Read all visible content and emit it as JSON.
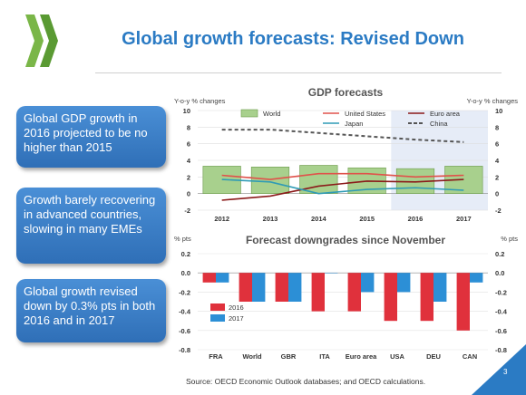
{
  "slide": {
    "title": "Global growth forecasts: Revised Down",
    "source": "Source: OECD Economic Outlook databases; and OECD calculations.",
    "page_number": "3",
    "colors": {
      "title": "#2b7bc4",
      "callout": "#3a7fc8",
      "logo": "#7ab648"
    }
  },
  "callouts": [
    {
      "text": "Global GDP growth in 2016 projected to be no higher than 2015"
    },
    {
      "text": "Growth barely recovering in advanced countries, slowing in many EMEs"
    },
    {
      "text": "Global growth revised down by 0.3% pts in both 2016 and in 2017"
    }
  ],
  "chart_data": [
    {
      "type": "bar",
      "title": "GDP forecasts",
      "ylabel_left": "Y-o-y % changes",
      "ylabel_right": "Y-o-y % changes",
      "ylim": [
        -2,
        10
      ],
      "yticks": [
        -2,
        0,
        2,
        4,
        6,
        8,
        10
      ],
      "categories": [
        "2012",
        "2013",
        "2014",
        "2015",
        "2016",
        "2017"
      ],
      "projection_shaded_from": "2016",
      "legend": [
        "World",
        "United States",
        "Euro area",
        "Japan",
        "China"
      ],
      "series": [
        {
          "name": "World",
          "kind": "bar",
          "color": "#a8d08d",
          "values": [
            3.3,
            3.2,
            3.4,
            3.1,
            3.0,
            3.3
          ]
        },
        {
          "name": "United States",
          "kind": "line",
          "color": "#e0524b",
          "values": [
            2.2,
            1.7,
            2.4,
            2.4,
            2.0,
            2.2
          ]
        },
        {
          "name": "Euro area",
          "kind": "line",
          "color": "#8b1a1a",
          "values": [
            -0.8,
            -0.3,
            0.9,
            1.5,
            1.4,
            1.7
          ]
        },
        {
          "name": "Japan",
          "kind": "line",
          "color": "#2f9bb5",
          "values": [
            1.7,
            1.4,
            0.0,
            0.5,
            0.7,
            0.4
          ]
        },
        {
          "name": "China",
          "kind": "dashed-line",
          "color": "#555555",
          "values": [
            7.7,
            7.7,
            7.3,
            6.9,
            6.5,
            6.2
          ]
        }
      ]
    },
    {
      "type": "bar",
      "title": "Forecast downgrades since November",
      "ylabel_left": "% pts",
      "ylabel_right": "% pts",
      "ylim": [
        -0.8,
        0.2
      ],
      "yticks": [
        -0.8,
        -0.6,
        -0.4,
        -0.2,
        0.0,
        0.2
      ],
      "categories": [
        "FRA",
        "World",
        "GBR",
        "ITA",
        "Euro area",
        "USA",
        "DEU",
        "CAN"
      ],
      "series": [
        {
          "name": "2016",
          "color": "#e0313c",
          "values": [
            -0.1,
            -0.3,
            -0.3,
            -0.4,
            -0.4,
            -0.5,
            -0.5,
            -0.6
          ]
        },
        {
          "name": "2017",
          "color": "#2c8fd6",
          "values": [
            -0.1,
            -0.3,
            -0.3,
            0.0,
            -0.2,
            -0.2,
            -0.3,
            -0.1
          ]
        }
      ]
    }
  ]
}
